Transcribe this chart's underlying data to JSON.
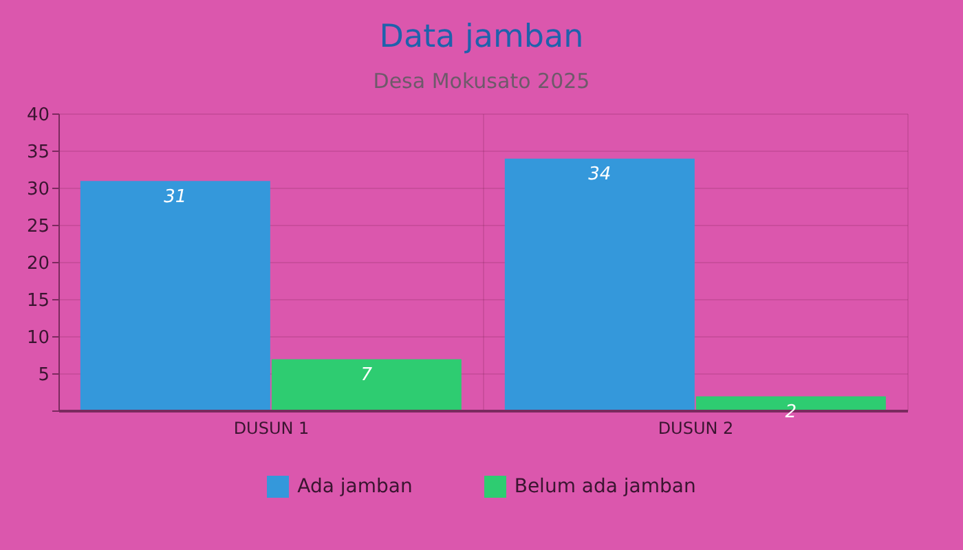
{
  "chart_data": {
    "type": "bar",
    "title": "Data jamban",
    "subtitle": "Desa Mokusato 2025",
    "categories": [
      "DUSUN 1",
      "DUSUN 2"
    ],
    "series": [
      {
        "name": "Ada jamban",
        "color": "#3498db",
        "values": [
          31,
          34
        ]
      },
      {
        "name": "Belum ada jamban",
        "color": "#2ecc71",
        "values": [
          7,
          2
        ]
      }
    ],
    "ylim": [
      0,
      40
    ],
    "yticks": [
      {
        "value": 0,
        "label": null
      },
      5,
      10,
      15,
      20,
      25,
      30,
      35,
      40
    ],
    "grid": true,
    "legend": "bottom",
    "data_labels": true
  }
}
